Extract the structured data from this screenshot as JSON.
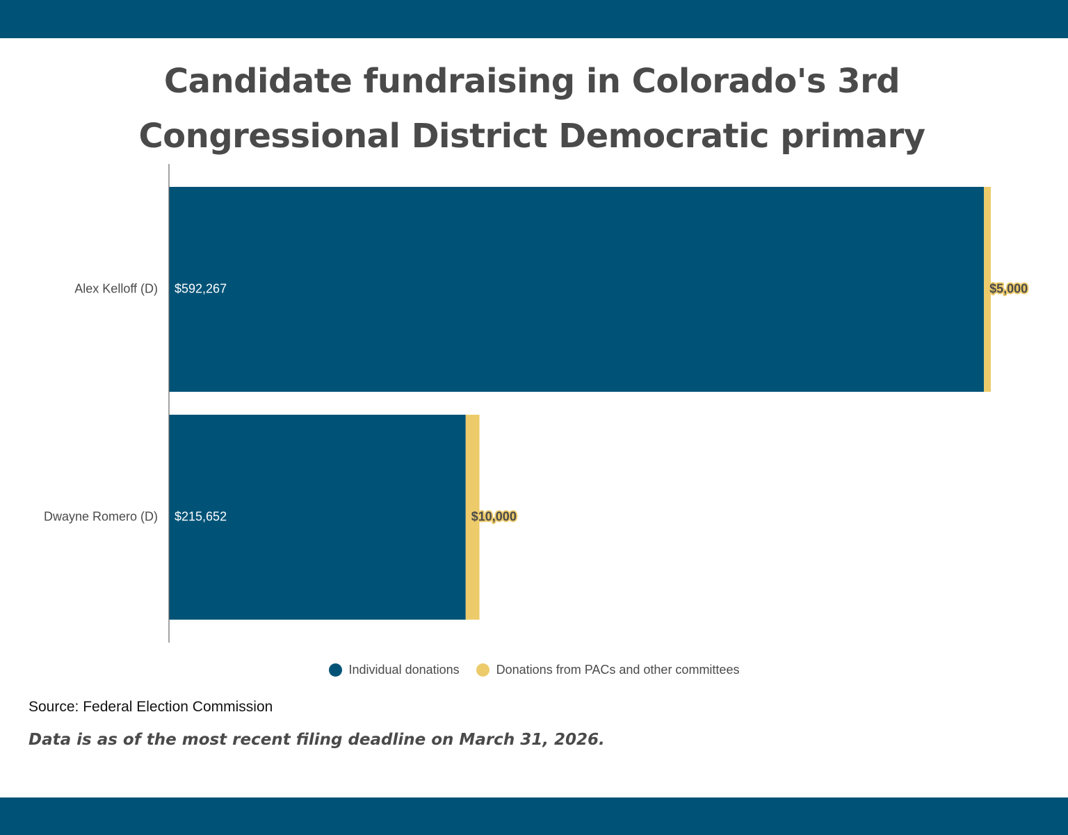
{
  "title": "Candidate fundraising in Colorado's 3rd Congressional District Democratic primary",
  "colors": {
    "band": "#005377",
    "individual": "#005377",
    "pac": "#EDCB6B",
    "text": "#4a4a4a"
  },
  "chart_data": {
    "type": "bar",
    "orientation": "horizontal",
    "stacked": true,
    "categories": [
      "Alex Kelloff (D)",
      "Dwayne Romero (D)"
    ],
    "series": [
      {
        "name": "Individual donations",
        "values": [
          592267,
          215652
        ],
        "labels": [
          "$592,267",
          "$215,652"
        ]
      },
      {
        "name": "Donations from PACs and other committees",
        "values": [
          5000,
          10000
        ],
        "labels": [
          "$5,000",
          "$10,000"
        ]
      }
    ],
    "grid": false,
    "legend_position": "bottom"
  },
  "legend": {
    "individual": "Individual donations",
    "pac": "Donations from PACs and other committees"
  },
  "source": "Source: Federal Election Commission",
  "note": "Data is as of the most recent filing deadline on March 31, 2026."
}
